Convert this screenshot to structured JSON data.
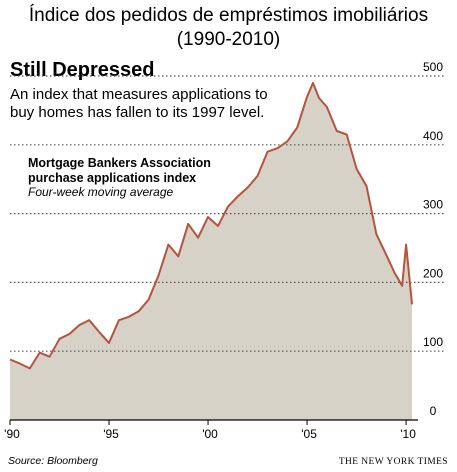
{
  "page_title_lines": [
    "Índice dos pedidos de empréstimos imobiliários",
    "(1990-2010)"
  ],
  "graphic": {
    "headline": "Still Depressed",
    "subhead_lines": [
      "An index that measures applications to",
      "buy homes has fallen to its 1997 level."
    ],
    "series_title_lines": [
      "Mortgage Bankers Association",
      "purchase applications index"
    ],
    "series_subtitle": "Four-week moving average",
    "source": "Source: Bloomberg",
    "credit": "THE NEW YORK TIMES"
  },
  "colors": {
    "area_fill": "#d6d2c8",
    "line": "#b5543a",
    "grid": "#555555"
  },
  "chart_data": {
    "type": "area",
    "xlim": [
      1990,
      2010.5
    ],
    "ylim": [
      0,
      500
    ],
    "x_tick_values": [
      1990,
      1995,
      2000,
      2005,
      2010
    ],
    "x_tick_labels": [
      "'90",
      "'95",
      "'00",
      "'05",
      "'10"
    ],
    "y_ticks": [
      0,
      100,
      200,
      300,
      400,
      500
    ],
    "y_tick_labels": [
      "0",
      "100",
      "200",
      "300",
      "400",
      "500"
    ],
    "grid": "dotted horizontal lines",
    "series": [
      {
        "x": [
          1990.0,
          1990.5,
          1991.0,
          1991.5,
          1992.0,
          1992.5,
          1993.0,
          1993.5,
          1994.0,
          1994.5,
          1995.0,
          1995.5,
          1996.0,
          1996.5,
          1997.0,
          1997.5,
          1998.0,
          1998.5,
          1999.0,
          1999.5,
          2000.0,
          2000.5,
          2001.0,
          2001.5,
          2002.0,
          2002.5,
          2003.0,
          2003.5,
          2004.0,
          2004.5,
          2005.0,
          2005.3,
          2005.6,
          2006.0,
          2006.5,
          2007.0,
          2007.5,
          2008.0,
          2008.5,
          2009.0,
          2009.4,
          2009.8,
          2010.0,
          2010.3
        ],
        "values": [
          88,
          82,
          75,
          98,
          92,
          118,
          125,
          138,
          145,
          128,
          112,
          145,
          150,
          158,
          175,
          210,
          255,
          238,
          285,
          265,
          295,
          282,
          310,
          325,
          338,
          355,
          390,
          395,
          405,
          425,
          470,
          490,
          468,
          455,
          420,
          415,
          365,
          340,
          270,
          240,
          215,
          195,
          255,
          168
        ]
      }
    ]
  }
}
